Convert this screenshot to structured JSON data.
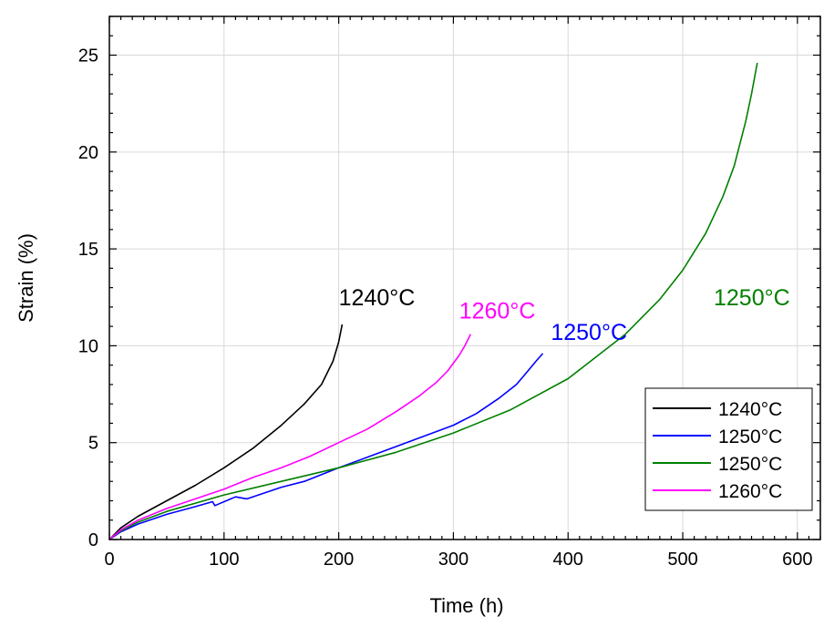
{
  "chart_data": {
    "type": "line",
    "xlabel": "Time (h)",
    "ylabel": "Strain (%)",
    "xlim": [
      0,
      620
    ],
    "ylim": [
      0,
      27
    ],
    "xticks": [
      0,
      100,
      200,
      300,
      400,
      500,
      600
    ],
    "yticks": [
      0,
      5,
      10,
      15,
      20,
      25
    ],
    "grid": true,
    "legend_position": "bottom-right",
    "series": [
      {
        "name": "1240°C",
        "color": "#000000",
        "x": [
          0,
          10,
          25,
          50,
          75,
          100,
          125,
          150,
          170,
          185,
          195,
          200,
          203
        ],
        "y": [
          0,
          0.6,
          1.2,
          2.0,
          2.8,
          3.7,
          4.7,
          5.9,
          7.0,
          8.0,
          9.2,
          10.2,
          11.1
        ]
      },
      {
        "name": "1250°C",
        "color": "#0000ff",
        "x": [
          0,
          10,
          25,
          50,
          75,
          90,
          92,
          110,
          120,
          150,
          170,
          200,
          250,
          300,
          320,
          340,
          355,
          365,
          372,
          378
        ],
        "y": [
          0,
          0.4,
          0.8,
          1.3,
          1.7,
          1.95,
          1.75,
          2.2,
          2.1,
          2.7,
          3.0,
          3.7,
          4.8,
          5.9,
          6.5,
          7.3,
          8.0,
          8.7,
          9.2,
          9.6
        ]
      },
      {
        "name": "1250°C",
        "color": "#008000",
        "x": [
          0,
          10,
          25,
          50,
          100,
          150,
          200,
          250,
          300,
          350,
          400,
          450,
          480,
          500,
          520,
          535,
          545,
          555,
          560,
          565
        ],
        "y": [
          0,
          0.45,
          0.9,
          1.45,
          2.3,
          3.0,
          3.7,
          4.5,
          5.5,
          6.7,
          8.3,
          10.6,
          12.4,
          13.9,
          15.8,
          17.7,
          19.3,
          21.6,
          23.0,
          24.6
        ]
      },
      {
        "name": "1260°C",
        "color": "#ff00ff",
        "x": [
          0,
          10,
          25,
          50,
          75,
          100,
          125,
          150,
          175,
          200,
          225,
          250,
          270,
          285,
          295,
          305,
          310,
          315
        ],
        "y": [
          0,
          0.5,
          1.0,
          1.6,
          2.1,
          2.6,
          3.2,
          3.7,
          4.3,
          5.0,
          5.7,
          6.6,
          7.4,
          8.1,
          8.7,
          9.5,
          10.0,
          10.6
        ]
      }
    ],
    "annotations": [
      {
        "text": "1240°C",
        "x": 200,
        "y": 12.1,
        "color": "#000000"
      },
      {
        "text": "1260°C",
        "x": 305,
        "y": 11.4,
        "color": "#ff00ff"
      },
      {
        "text": "1250°C",
        "x": 385,
        "y": 10.3,
        "color": "#0000ff"
      },
      {
        "text": "1250°C",
        "x": 527,
        "y": 12.1,
        "color": "#008000"
      }
    ]
  }
}
